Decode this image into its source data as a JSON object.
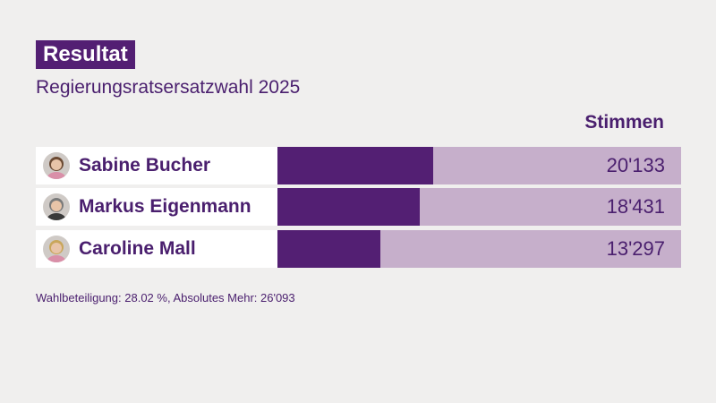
{
  "header": {
    "badge": "Resultat",
    "subtitle": "Regierungsratsersatzwahl 2025"
  },
  "chart_data": {
    "type": "bar",
    "column_header": "Stimmen",
    "categories": [
      "Sabine Bucher",
      "Markus Eigenmann",
      "Caroline Mall"
    ],
    "values": [
      20133,
      18431,
      13297
    ],
    "value_labels": [
      "20'133",
      "18'431",
      "13'297"
    ],
    "xlim": [
      0,
      52186
    ],
    "colors": {
      "fill": "#531f73",
      "track": "#c6afcb"
    }
  },
  "footnote": "Wahlbeteiligung: 28.02 %, Absolutes Mehr: 26'093"
}
